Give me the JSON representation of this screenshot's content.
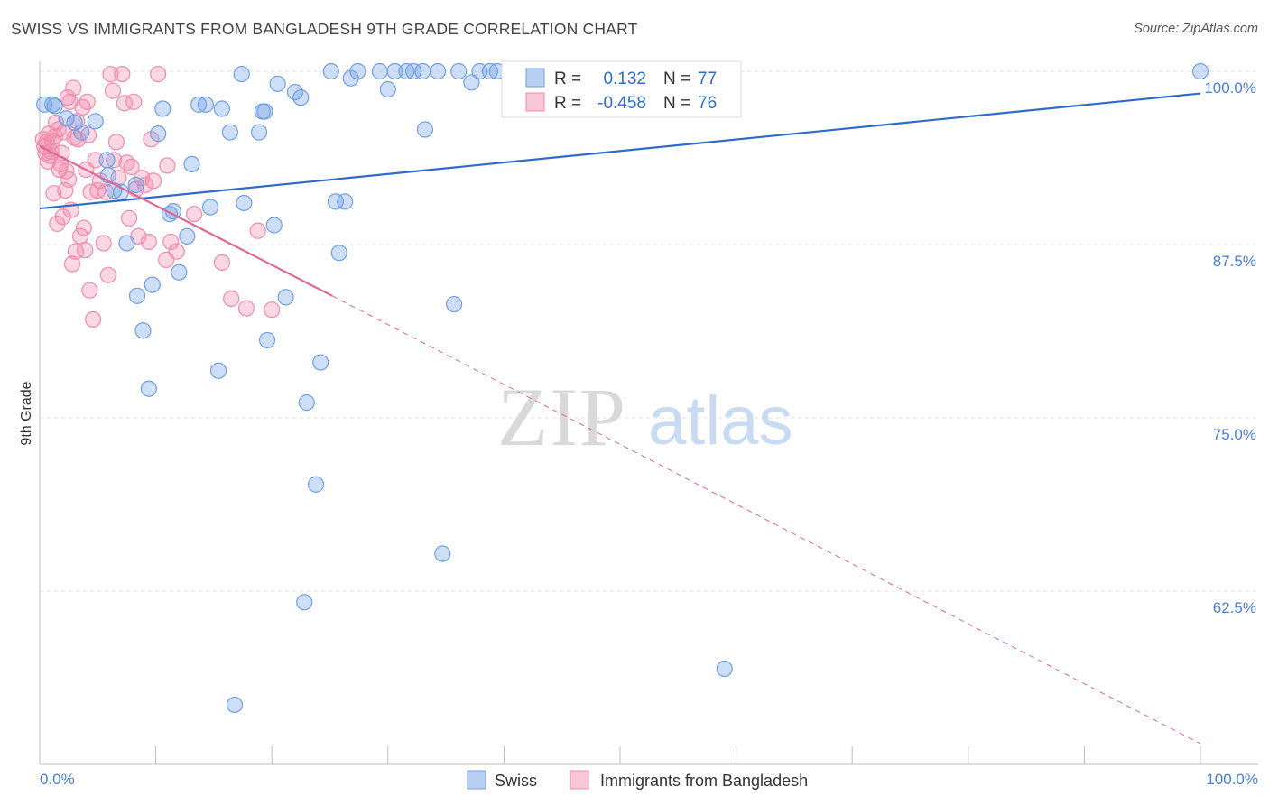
{
  "title": "SWISS VS IMMIGRANTS FROM BANGLADESH 9TH GRADE CORRELATION CHART",
  "source": "Source: ZipAtlas.com",
  "watermark": {
    "zip": "ZIP",
    "atlas": "atlas"
  },
  "colors": {
    "swiss": "#6fa0e6",
    "swiss_line": "#2f6cc9",
    "bangladesh": "#f08cab",
    "bangladesh_line": "#e06693",
    "axis_text": "#4a7fd0",
    "grid": "#e3e3e3"
  },
  "legend": {
    "rows": [
      {
        "r_label": "R =",
        "r_value": "0.132",
        "n_label": "N =",
        "n_value": "77"
      },
      {
        "r_label": "R =",
        "r_value": "-0.458",
        "n_label": "N =",
        "n_value": "76"
      }
    ]
  },
  "chart_data": {
    "type": "scatter",
    "title": "SWISS VS IMMIGRANTS FROM BANGLADESH 9TH GRADE CORRELATION CHART",
    "xlabel": "",
    "ylabel": "9th Grade",
    "xlim": [
      0,
      100
    ],
    "ylim": [
      51,
      101.5
    ],
    "x_tick_labels": [
      "0.0%",
      "100.0%"
    ],
    "y_ticks": [
      100.0,
      87.5,
      75.0,
      62.5
    ],
    "y_tick_labels": [
      "100.0%",
      "87.5%",
      "75.0%",
      "62.5%"
    ],
    "grid": true,
    "legend_position": "top-center",
    "series": [
      {
        "name": "Swiss",
        "trend": {
          "x": [
            0,
            100
          ],
          "y": [
            90.1,
            98.4
          ]
        },
        "points": [
          [
            0.4,
            97.6
          ],
          [
            1.1,
            97.6
          ],
          [
            1.3,
            97.5
          ],
          [
            2.3,
            96.6
          ],
          [
            3.0,
            96.3
          ],
          [
            3.6,
            95.6
          ],
          [
            4.8,
            96.4
          ],
          [
            5.8,
            93.6
          ],
          [
            5.9,
            92.5
          ],
          [
            6.4,
            91.4
          ],
          [
            7.0,
            91.3
          ],
          [
            7.5,
            87.6
          ],
          [
            8.3,
            91.8
          ],
          [
            8.4,
            83.8
          ],
          [
            8.9,
            81.3
          ],
          [
            9.4,
            77.1
          ],
          [
            9.7,
            84.6
          ],
          [
            10.2,
            95.5
          ],
          [
            10.6,
            97.3
          ],
          [
            11.2,
            89.7
          ],
          [
            11.5,
            89.9
          ],
          [
            12.0,
            85.5
          ],
          [
            12.7,
            88.1
          ],
          [
            13.1,
            93.3
          ],
          [
            13.7,
            97.6
          ],
          [
            14.3,
            97.6
          ],
          [
            14.7,
            90.2
          ],
          [
            15.4,
            78.4
          ],
          [
            15.7,
            97.3
          ],
          [
            16.4,
            95.6
          ],
          [
            16.8,
            54.3
          ],
          [
            17.4,
            99.8
          ],
          [
            17.6,
            90.5
          ],
          [
            18.9,
            95.6
          ],
          [
            19.2,
            97.1
          ],
          [
            19.4,
            97.1
          ],
          [
            19.6,
            80.6
          ],
          [
            20.2,
            88.9
          ],
          [
            20.5,
            99.1
          ],
          [
            21.2,
            83.7
          ],
          [
            22.0,
            98.5
          ],
          [
            22.5,
            98.1
          ],
          [
            22.8,
            61.7
          ],
          [
            23.0,
            76.1
          ],
          [
            23.8,
            70.2
          ],
          [
            24.2,
            79.0
          ],
          [
            25.1,
            100.0
          ],
          [
            25.5,
            90.6
          ],
          [
            25.8,
            86.9
          ],
          [
            26.3,
            90.6
          ],
          [
            26.8,
            99.5
          ],
          [
            27.4,
            100.0
          ],
          [
            29.3,
            100.0
          ],
          [
            30.0,
            98.7
          ],
          [
            30.6,
            100.0
          ],
          [
            31.6,
            100.0
          ],
          [
            32.2,
            100.0
          ],
          [
            33.0,
            100.0
          ],
          [
            33.2,
            95.8
          ],
          [
            34.3,
            100.0
          ],
          [
            34.7,
            65.2
          ],
          [
            35.7,
            83.2
          ],
          [
            36.1,
            100.0
          ],
          [
            37.2,
            99.2
          ],
          [
            37.9,
            100.0
          ],
          [
            38.8,
            100.0
          ],
          [
            39.4,
            100.0
          ],
          [
            40.6,
            100.0
          ],
          [
            42.0,
            100.0
          ],
          [
            43.3,
            100.0
          ],
          [
            45.1,
            100.0
          ],
          [
            46.8,
            100.0
          ],
          [
            48.7,
            100.0
          ],
          [
            50.9,
            100.0
          ],
          [
            53.1,
            100.0
          ],
          [
            59.0,
            56.9
          ],
          [
            100.0,
            100.0
          ]
        ]
      },
      {
        "name": "Immigrants from Bangladesh",
        "trend": {
          "x": [
            0,
            25.2
          ],
          "y": [
            94.6,
            83.8
          ]
        },
        "trend_extension": {
          "x": [
            25.2,
            100
          ],
          "y": [
            83.8,
            51.5
          ]
        },
        "points": [
          [
            0.3,
            95.1
          ],
          [
            0.4,
            94.6
          ],
          [
            0.5,
            94.1
          ],
          [
            0.6,
            94.9
          ],
          [
            0.7,
            93.5
          ],
          [
            0.8,
            95.5
          ],
          [
            0.9,
            93.9
          ],
          [
            1.0,
            94.2
          ],
          [
            1.1,
            95.0
          ],
          [
            1.2,
            91.2
          ],
          [
            1.3,
            95.3
          ],
          [
            1.4,
            96.3
          ],
          [
            1.5,
            89.0
          ],
          [
            1.6,
            95.8
          ],
          [
            1.7,
            92.9
          ],
          [
            1.8,
            93.3
          ],
          [
            1.9,
            94.1
          ],
          [
            2.0,
            89.5
          ],
          [
            2.1,
            95.6
          ],
          [
            2.2,
            91.4
          ],
          [
            2.3,
            92.8
          ],
          [
            2.4,
            98.1
          ],
          [
            2.5,
            92.2
          ],
          [
            2.6,
            97.8
          ],
          [
            2.7,
            90.0
          ],
          [
            2.8,
            86.1
          ],
          [
            2.9,
            98.8
          ],
          [
            3.0,
            95.2
          ],
          [
            3.1,
            87.0
          ],
          [
            3.2,
            96.4
          ],
          [
            3.3,
            95.1
          ],
          [
            3.5,
            88.1
          ],
          [
            3.7,
            97.4
          ],
          [
            3.8,
            88.7
          ],
          [
            3.9,
            87.1
          ],
          [
            4.0,
            92.9
          ],
          [
            4.1,
            97.8
          ],
          [
            4.2,
            95.4
          ],
          [
            4.3,
            84.2
          ],
          [
            4.4,
            91.3
          ],
          [
            4.6,
            82.1
          ],
          [
            4.8,
            93.6
          ],
          [
            5.0,
            91.4
          ],
          [
            5.2,
            92.1
          ],
          [
            5.5,
            87.6
          ],
          [
            5.7,
            91.3
          ],
          [
            5.9,
            85.3
          ],
          [
            6.1,
            99.8
          ],
          [
            6.3,
            98.6
          ],
          [
            6.4,
            93.6
          ],
          [
            6.6,
            94.9
          ],
          [
            6.8,
            92.3
          ],
          [
            7.1,
            99.8
          ],
          [
            7.3,
            97.7
          ],
          [
            7.5,
            93.4
          ],
          [
            7.7,
            89.4
          ],
          [
            7.9,
            93.1
          ],
          [
            8.1,
            97.8
          ],
          [
            8.3,
            91.5
          ],
          [
            8.5,
            88.1
          ],
          [
            8.8,
            92.3
          ],
          [
            9.1,
            91.8
          ],
          [
            9.4,
            87.7
          ],
          [
            9.6,
            95.1
          ],
          [
            9.8,
            92.1
          ],
          [
            10.2,
            99.8
          ],
          [
            10.9,
            86.4
          ],
          [
            11.3,
            87.7
          ],
          [
            11.8,
            87.0
          ],
          [
            13.3,
            89.7
          ],
          [
            15.7,
            86.2
          ],
          [
            16.5,
            83.6
          ],
          [
            17.8,
            82.9
          ],
          [
            18.8,
            88.5
          ],
          [
            20.0,
            82.8
          ],
          [
            11.0,
            93.2
          ]
        ]
      }
    ]
  }
}
